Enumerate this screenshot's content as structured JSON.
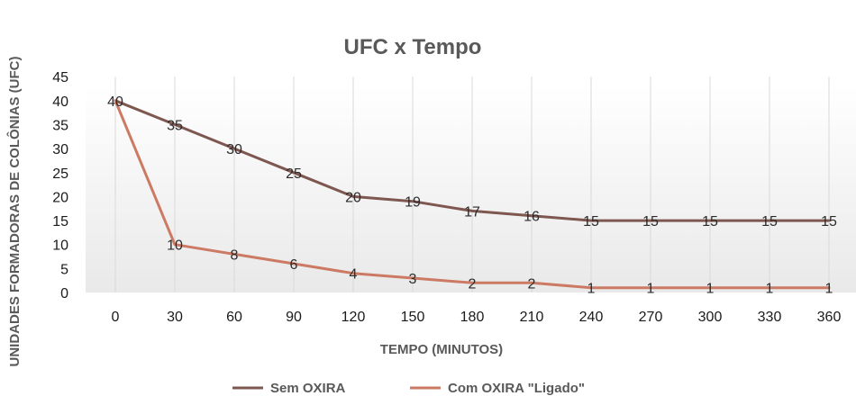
{
  "chart_data": {
    "type": "line",
    "title": "UFC  x  Tempo",
    "xlabel": "TEMPO (MINUTOS)",
    "ylabel": "UNIDADES FORMADORAS DE COLÔNIAS (UFC)",
    "categories": [
      "0",
      "30",
      "60",
      "90",
      "120",
      "150",
      "180",
      "210",
      "240",
      "270",
      "300",
      "330",
      "360"
    ],
    "ylim": [
      0,
      45
    ],
    "yticks": [
      0,
      5,
      10,
      15,
      20,
      25,
      30,
      35,
      40,
      45
    ],
    "grid": "vertical",
    "legend_position": "bottom",
    "series": [
      {
        "name": "Sem OXIRA",
        "color": "#7d5750",
        "values": [
          40,
          35,
          30,
          25,
          20,
          19,
          17,
          16,
          15,
          15,
          15,
          15,
          15
        ],
        "labels": [
          40,
          35,
          30,
          25,
          20,
          19,
          17,
          16,
          15,
          15,
          15,
          15,
          15
        ]
      },
      {
        "name": "Com OXIRA \"Ligado\"",
        "color": "#cc7a63",
        "values": [
          40,
          10,
          8,
          6,
          4,
          3,
          2,
          2,
          1,
          1,
          1,
          1,
          1
        ],
        "labels": [
          null,
          10,
          8,
          6,
          4,
          3,
          2,
          2,
          1,
          1,
          1,
          1,
          1
        ]
      }
    ]
  }
}
